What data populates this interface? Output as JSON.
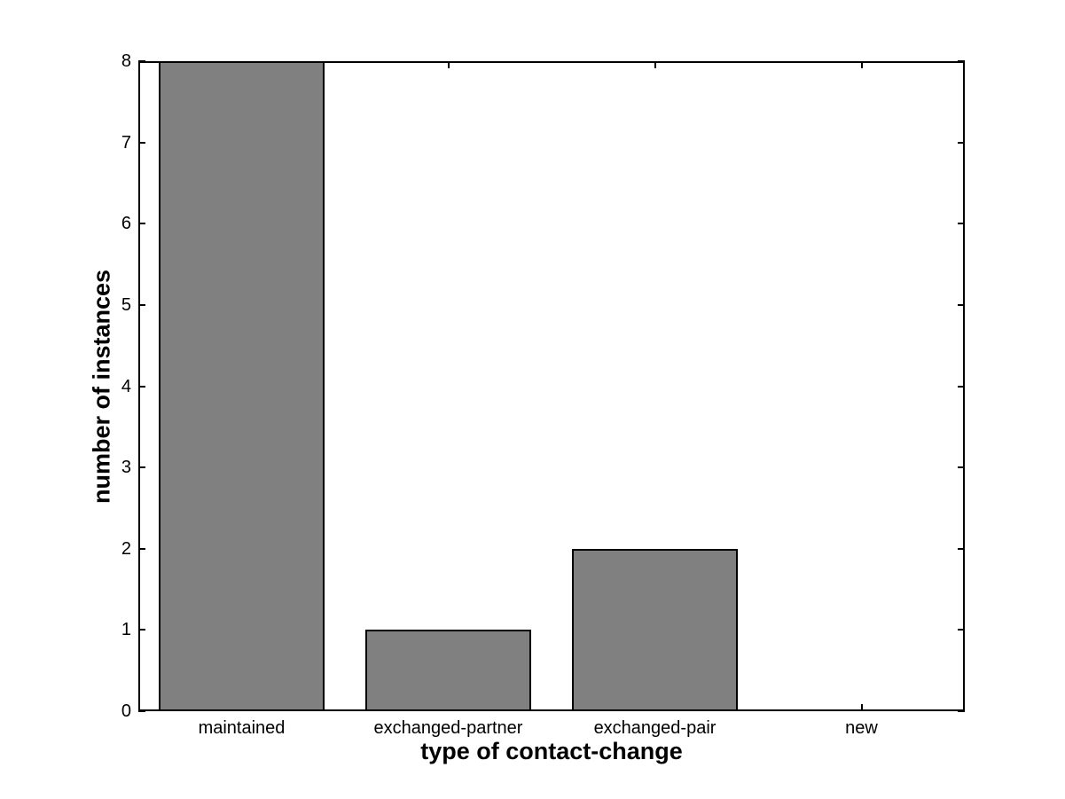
{
  "figure": {
    "background_color": "#ffffff"
  },
  "chart_data": {
    "type": "bar",
    "title": "",
    "xlabel": "type of contact-change",
    "ylabel": "number of instances",
    "categories": [
      "maintained",
      "exchanged-partner",
      "exchanged-pair",
      "new"
    ],
    "values": [
      8,
      1,
      2,
      0
    ],
    "ylim": [
      0,
      8
    ],
    "yticks": [
      0,
      1,
      2,
      3,
      4,
      5,
      6,
      7,
      8
    ],
    "ytick_labels": [
      "0",
      "1",
      "2",
      "3",
      "4",
      "5",
      "6",
      "7",
      "8"
    ],
    "bar_color": "#808080",
    "bar_edge_color": "#000000",
    "axis_color": "#000000",
    "bar_width_fraction": 0.8,
    "grid": false,
    "legend": null,
    "box": true,
    "tick_direction": "in"
  }
}
